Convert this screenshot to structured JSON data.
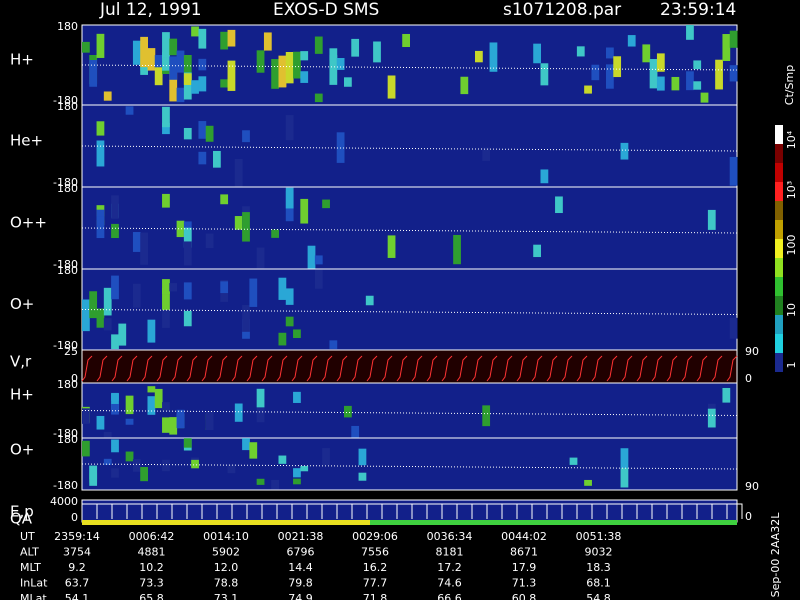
{
  "header": {
    "date": "Jul 12, 1991",
    "instrument": "EXOS-D SMS",
    "file": "s1071208.par",
    "time": "23:59:14"
  },
  "panels": [
    {
      "label": "H+",
      "ticks": [
        180,
        -180
      ]
    },
    {
      "label": "He+",
      "ticks": [
        180,
        -180
      ]
    },
    {
      "label": "O++",
      "ticks": [
        180,
        -180
      ]
    },
    {
      "label": "O+",
      "ticks": [
        180,
        -180
      ]
    },
    {
      "label": "V,r",
      "ticks": [
        25,
        0
      ],
      "right_ticks": [
        90,
        0
      ]
    },
    {
      "label": "H+",
      "ticks": [
        180,
        -180
      ]
    },
    {
      "label": "O+",
      "ticks": [
        180,
        -180
      ],
      "right_ticks": [
        90
      ]
    },
    {
      "label": "E,p",
      "sublabel": "QA",
      "ticks": [
        4000,
        0
      ],
      "right_ticks": [
        0
      ]
    }
  ],
  "colorbar": {
    "unit": "Ct/Smp",
    "ticks": [
      {
        "value": 10000,
        "label": "10⁴"
      },
      {
        "value": 1000,
        "label": "10³"
      },
      100,
      10,
      1
    ]
  },
  "footer": {
    "rows": [
      {
        "label": "UT",
        "values": [
          "2359:14",
          "0006:42",
          "0014:10",
          "0021:38",
          "0029:06",
          "0036:34",
          "0044:02",
          "0051:38"
        ]
      },
      {
        "label": "ALT",
        "values": [
          "3754",
          "4881",
          "5902",
          "6796",
          "7556",
          "8181",
          "8671",
          "9032"
        ]
      },
      {
        "label": "MLT",
        "values": [
          "9.2",
          "10.2",
          "12.0",
          "14.4",
          "16.2",
          "17.2",
          "17.9",
          "18.3"
        ]
      },
      {
        "label": "InLat",
        "values": [
          "63.7",
          "73.3",
          "78.8",
          "79.8",
          "77.7",
          "74.6",
          "71.3",
          "68.1"
        ]
      },
      {
        "label": "MLat",
        "values": [
          "54.1",
          "65.8",
          "73.1",
          "74.9",
          "71.8",
          "66.6",
          "60.8",
          "54.8"
        ]
      }
    ]
  },
  "stamp": "Sep-00 2AA32L"
}
